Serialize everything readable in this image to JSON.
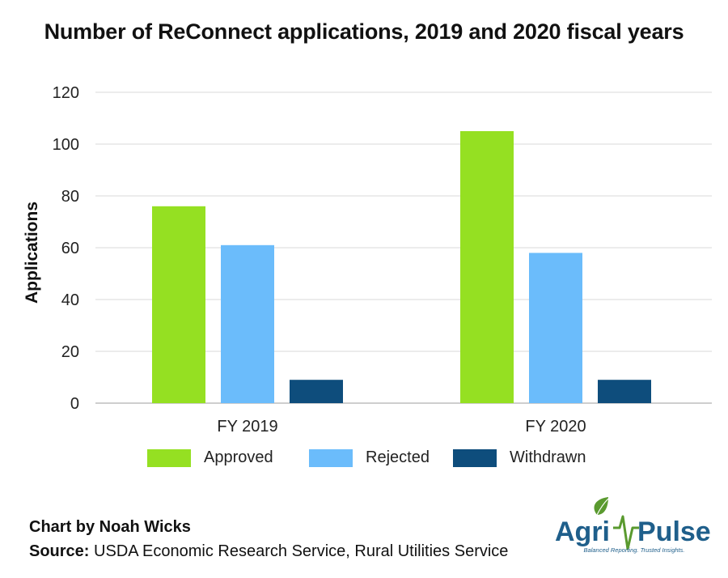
{
  "chart_data": {
    "type": "bar",
    "title": "Number of ReConnect applications, 2019 and 2020 fiscal years",
    "xlabel": "",
    "ylabel": "Applications",
    "categories": [
      "FY 2019",
      "FY 2020"
    ],
    "series": [
      {
        "name": "Approved",
        "values": [
          76,
          105
        ],
        "color": "#95e022"
      },
      {
        "name": "Rejected",
        "values": [
          61,
          58
        ],
        "color": "#6bbcfb"
      },
      {
        "name": "Withdrawn",
        "values": [
          9,
          9
        ],
        "color": "#0e4d7c"
      }
    ],
    "ylim": [
      0,
      120
    ],
    "yticks": [
      0,
      20,
      40,
      60,
      80,
      100,
      120
    ],
    "grid": true,
    "legend": "bottom"
  },
  "footer": {
    "credit": "Chart by Noah Wicks",
    "source_label": "Source:",
    "source_text": "USDA  Economic Research Service, Rural Utilities Service"
  },
  "logo": {
    "brand_left": "Agri",
    "brand_right": "Pulse",
    "tagline": "Balanced Reporting. Trusted Insights.",
    "colors": {
      "primary": "#1f5f8b",
      "accent": "#5a9a2f"
    }
  }
}
